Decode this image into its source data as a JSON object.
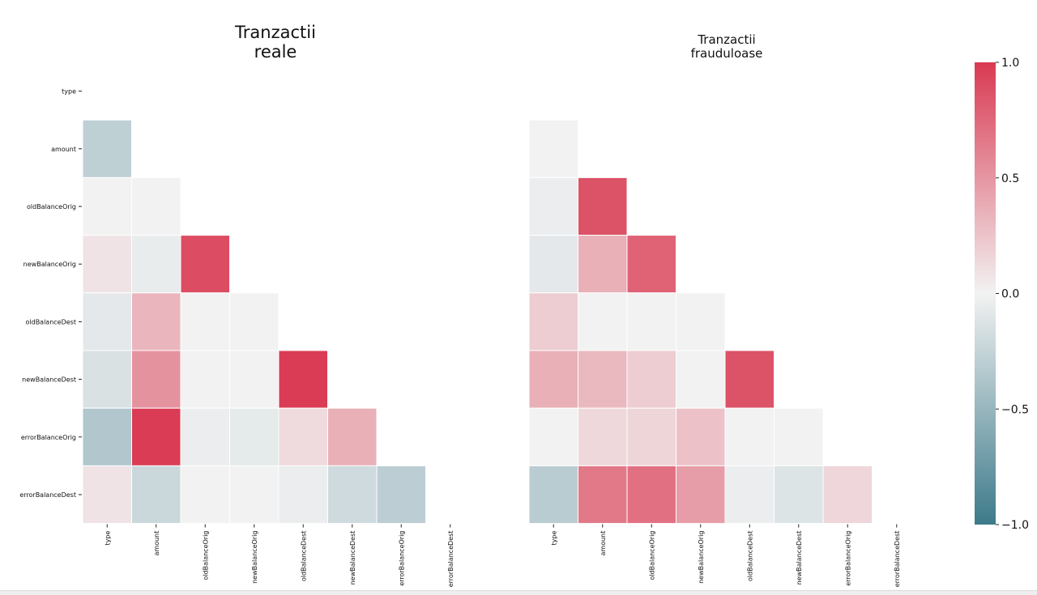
{
  "chart_data": [
    {
      "type": "heatmap",
      "title": "Tranzactii\nreale",
      "variables": [
        "type",
        "amount",
        "oldBalanceOrig",
        "newBalanceOrig",
        "oldBalanceDest",
        "newBalanceDest",
        "errorBalanceOrig",
        "errorBalanceDest"
      ],
      "mask": "upper-triangle-including-diagonal",
      "matrix": [
        [
          null,
          null,
          null,
          null,
          null,
          null,
          null,
          null
        ],
        [
          -0.28,
          null,
          null,
          null,
          null,
          null,
          null,
          null
        ],
        [
          0.0,
          0.0,
          null,
          null,
          null,
          null,
          null,
          null
        ],
        [
          0.08,
          -0.05,
          0.9,
          null,
          null,
          null,
          null,
          null
        ],
        [
          -0.08,
          0.33,
          0.0,
          0.0,
          null,
          null,
          null,
          null
        ],
        [
          -0.14,
          0.52,
          0.0,
          0.0,
          0.99,
          null,
          null,
          null
        ],
        [
          -0.36,
          0.99,
          -0.04,
          -0.07,
          0.13,
          0.36,
          null,
          null
        ],
        [
          0.08,
          -0.22,
          0.0,
          0.0,
          -0.04,
          -0.2,
          -0.3,
          null
        ]
      ]
    },
    {
      "type": "heatmap",
      "title": "Tranzactii\nfrauduloase",
      "variables": [
        "type",
        "amount",
        "oldBalanceOrig",
        "newBalanceOrig",
        "oldBalanceDest",
        "newBalanceDest",
        "errorBalanceOrig",
        "errorBalanceDest"
      ],
      "mask": "upper-triangle-including-diagonal",
      "matrix": [
        [
          null,
          null,
          null,
          null,
          null,
          null,
          null,
          null
        ],
        [
          0.0,
          null,
          null,
          null,
          null,
          null,
          null,
          null
        ],
        [
          -0.04,
          0.87,
          null,
          null,
          null,
          null,
          null,
          null
        ],
        [
          -0.08,
          0.36,
          0.78,
          null,
          null,
          null,
          null,
          null
        ],
        [
          0.2,
          0.0,
          0.0,
          0.0,
          null,
          null,
          null,
          null
        ],
        [
          0.36,
          0.31,
          0.2,
          0.0,
          0.87,
          null,
          null,
          null
        ],
        [
          0.0,
          0.14,
          0.16,
          0.26,
          0.0,
          0.0,
          null,
          null
        ],
        [
          -0.32,
          0.66,
          0.7,
          0.46,
          -0.04,
          -0.12,
          0.15,
          null
        ]
      ]
    }
  ],
  "colorbar": {
    "min": -1.0,
    "max": 1.0,
    "ticks": [
      "1.0",
      "0.5",
      "0.0",
      "−0.5",
      "−1.0"
    ],
    "tick_values": [
      1.0,
      0.5,
      0.0,
      -0.5,
      -1.0
    ],
    "color_negative": "#3d7a8a",
    "color_center": "#f2f2f2",
    "color_positive": "#d93a52"
  }
}
